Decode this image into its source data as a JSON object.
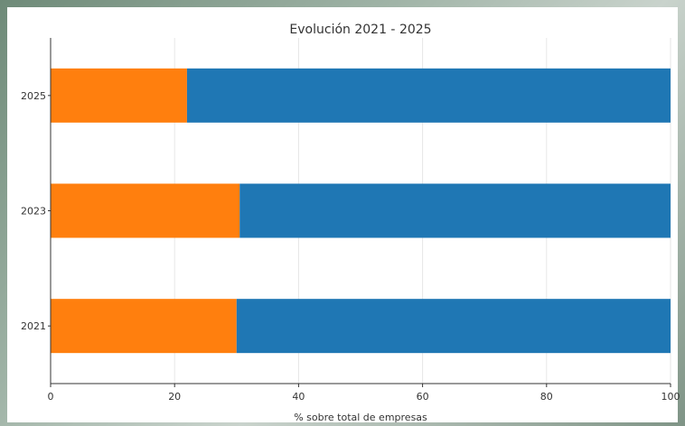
{
  "chart_data": {
    "type": "bar",
    "orientation": "horizontal",
    "stacked": true,
    "title": "Evolución 2021 - 2025",
    "xlabel": "% sobre total de empresas",
    "ylabel": "",
    "xlim": [
      0,
      100
    ],
    "xticks": [
      0,
      20,
      40,
      60,
      80,
      100
    ],
    "grid": "vertical",
    "legend": "none",
    "categories": [
      "2021",
      "2023",
      "2025"
    ],
    "series": [
      {
        "values": [
          30,
          30.5,
          22
        ],
        "color": "#ff7f0e"
      },
      {
        "values": [
          70,
          69.5,
          78
        ],
        "color": "#1f77b4"
      }
    ]
  }
}
